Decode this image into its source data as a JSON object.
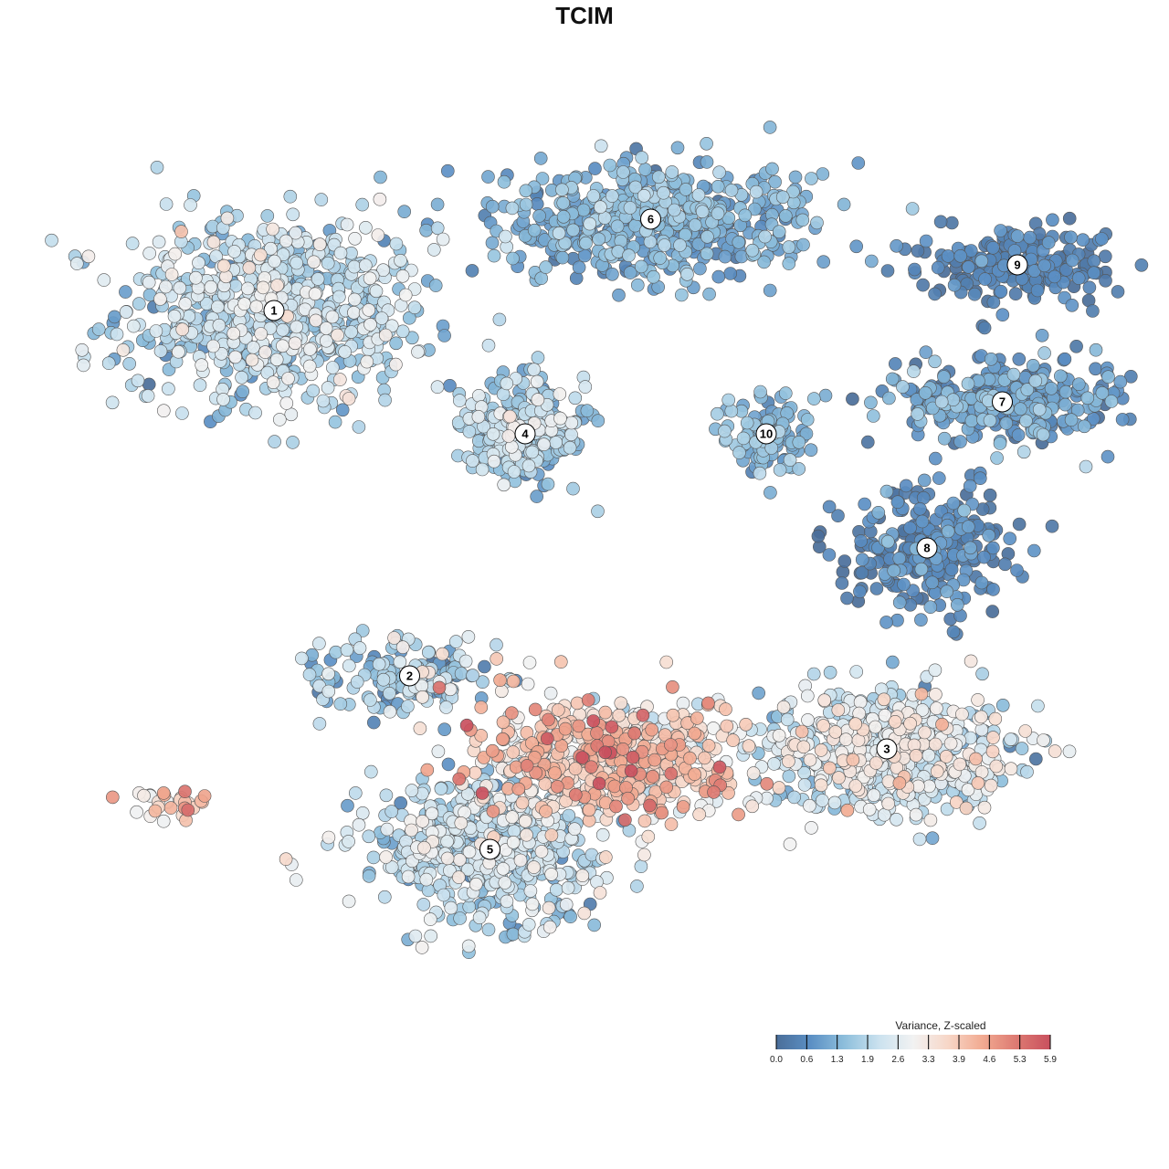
{
  "chart_data": {
    "type": "scatter",
    "title": "TCIM",
    "xlabel": "",
    "ylabel": "",
    "grid": false,
    "legend_placement": "bottom-right",
    "colorbar": {
      "title": "Variance, Z-scaled",
      "ticks": [
        "0.0",
        "0.6",
        "1.3",
        "1.9",
        "2.6",
        "3.3",
        "3.9",
        "4.6",
        "5.3",
        "5.9"
      ],
      "range": [
        0.0,
        5.9
      ],
      "colors": [
        "#4a6e99",
        "#5b8fc4",
        "#8ebfdc",
        "#cbe2ef",
        "#f2f2f2",
        "#f7d7c8",
        "#f2ab92",
        "#dd7a72",
        "#c9505e"
      ]
    },
    "clusters": [
      {
        "label": "1",
        "x": -6.0,
        "y": 5.0,
        "points": 760,
        "spread": [
          2.8,
          1.9
        ],
        "mean_value": 2.0,
        "value_sd": 0.6
      },
      {
        "label": "2",
        "x": -3.3,
        "y": -3.0,
        "points": 170,
        "spread": [
          1.6,
          0.8
        ],
        "mean_value": 1.7,
        "value_sd": 0.7
      },
      {
        "label": "3",
        "x": 6.2,
        "y": -4.6,
        "points": 620,
        "spread": [
          2.3,
          1.2
        ],
        "mean_value": 2.4,
        "value_sd": 0.7
      },
      {
        "label": "4",
        "x": -1.0,
        "y": 2.3,
        "points": 320,
        "spread": [
          1.1,
          1.0
        ],
        "mean_value": 1.7,
        "value_sd": 0.6
      },
      {
        "label": "5",
        "x": -1.7,
        "y": -6.8,
        "points": 560,
        "spread": [
          2.1,
          1.3
        ],
        "mean_value": 2.0,
        "value_sd": 0.6
      },
      {
        "label": "6",
        "x": 1.5,
        "y": 7.0,
        "points": 520,
        "spread": [
          2.9,
          1.2
        ],
        "mean_value": 1.2,
        "value_sd": 0.4
      },
      {
        "label": "7",
        "x": 8.5,
        "y": 3.0,
        "points": 320,
        "spread": [
          2.0,
          0.8
        ],
        "mean_value": 0.9,
        "value_sd": 0.5
      },
      {
        "label": "8",
        "x": 7.0,
        "y": -0.2,
        "points": 260,
        "spread": [
          1.6,
          1.2
        ],
        "mean_value": 0.5,
        "value_sd": 0.4
      },
      {
        "label": "9",
        "x": 8.8,
        "y": 6.0,
        "points": 200,
        "spread": [
          1.7,
          0.8
        ],
        "mean_value": 0.4,
        "value_sd": 0.3
      },
      {
        "label": "10",
        "x": 3.8,
        "y": 2.3,
        "points": 110,
        "spread": [
          0.8,
          0.8
        ],
        "mean_value": 1.3,
        "value_sd": 0.4
      },
      {
        "label": "",
        "x": 0.7,
        "y": -4.8,
        "points": 560,
        "spread": [
          2.4,
          1.2
        ],
        "mean_value": 3.6,
        "value_sd": 0.8
      },
      {
        "label": "",
        "x": -8.2,
        "y": -5.8,
        "points": 30,
        "spread": [
          0.9,
          0.3
        ],
        "mean_value": 3.6,
        "value_sd": 0.6
      }
    ]
  }
}
